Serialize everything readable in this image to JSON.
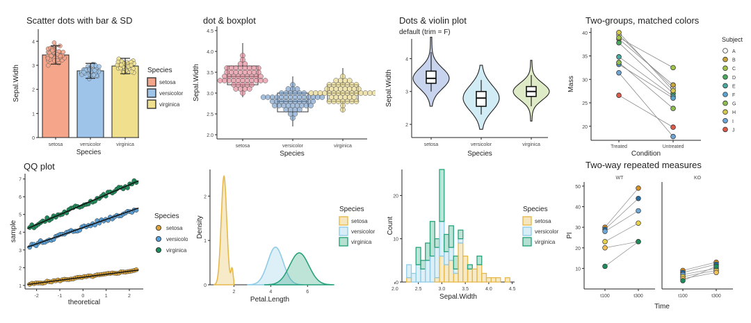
{
  "panels": [
    {
      "title": "Scatter dots with bar & SD",
      "chart_data": {
        "type": "bar",
        "categories": [
          "setosa",
          "versicolor",
          "virginica"
        ],
        "values": [
          3.43,
          2.77,
          2.97
        ],
        "sd": [
          0.38,
          0.31,
          0.32
        ],
        "xlabel": "Species",
        "ylabel": "Sepal.Width",
        "ylim": [
          0,
          4.5
        ],
        "yticks": [
          0,
          1,
          2,
          3,
          4
        ],
        "legend_title": "Species",
        "legend_labels": [
          "setosa",
          "versicolor",
          "virginica"
        ],
        "colors": [
          "#f4a58a",
          "#9ec4ea",
          "#f0e08e"
        ],
        "grid": false,
        "legend_position": "right"
      }
    },
    {
      "title": "dot & boxplot",
      "chart_data": {
        "type": "box",
        "categories": [
          "setosa",
          "versicolor",
          "virginica"
        ],
        "box": [
          {
            "min": 2.9,
            "q1": 3.2,
            "median": 3.4,
            "q3": 3.65,
            "max": 4.2
          },
          {
            "min": 2.2,
            "q1": 2.55,
            "median": 2.8,
            "q3": 3.0,
            "max": 3.4
          },
          {
            "min": 2.55,
            "q1": 2.8,
            "median": 3.0,
            "q3": 3.2,
            "max": 3.6
          }
        ],
        "xlabel": "Species",
        "ylabel": "Sepal.Width",
        "ylim": [
          1.9,
          4.6
        ],
        "yticks": [
          2.0,
          2.5,
          3.0,
          3.5,
          4.0,
          4.5
        ],
        "ytick_labels": [
          "2.0",
          "2.5",
          "3.0",
          "3.5",
          "4.0",
          "4.5"
        ],
        "colors": [
          "#e07a8a",
          "#6b94c4",
          "#e4d27a"
        ],
        "grid": false
      }
    },
    {
      "title": "Dots & violin plot",
      "subtitle": "default (trim = F)",
      "chart_data": {
        "type": "violin",
        "categories": [
          "setosa",
          "versicolor",
          "virginica"
        ],
        "box": [
          {
            "min": 3.0,
            "q1": 3.25,
            "median": 3.4,
            "q3": 3.62,
            "max": 4.2
          },
          {
            "min": 2.3,
            "q1": 2.55,
            "median": 2.8,
            "q3": 3.0,
            "max": 3.35
          },
          {
            "min": 2.55,
            "q1": 2.85,
            "median": 3.0,
            "q3": 3.15,
            "max": 3.5
          }
        ],
        "xlabel": "Species",
        "ylabel": "Sepal.Width",
        "ylim": [
          1.6,
          4.6
        ],
        "yticks": [
          2,
          3,
          4
        ],
        "colors": [
          "#c8d4ee",
          "#d2ecf6",
          "#dfeac6"
        ],
        "grid": false
      }
    },
    {
      "title": "Two-groups, matched colors",
      "chart_data": {
        "type": "line",
        "categories": [
          "Treated",
          "Untreated"
        ],
        "series": [
          {
            "name": "A",
            "values": [
              39.5,
              28.2
            ]
          },
          {
            "name": "B",
            "values": [
              38.6,
              28.8
            ]
          },
          {
            "name": "C",
            "values": [
              38.9,
              32.5
            ]
          },
          {
            "name": "D",
            "values": [
              37.8,
              27.0
            ]
          },
          {
            "name": "E",
            "values": [
              34.8,
              26.4
            ]
          },
          {
            "name": "F",
            "values": [
              33.2,
              26.0
            ]
          },
          {
            "name": "G",
            "values": [
              33.6,
              23.8
            ]
          },
          {
            "name": "H",
            "values": [
              40.0,
              27.6
            ]
          },
          {
            "name": "I",
            "values": [
              31.4,
              17.8
            ]
          },
          {
            "name": "J",
            "values": [
              26.6,
              19.8
            ]
          }
        ],
        "xlabel": "Condition",
        "ylabel": "Mass",
        "ylim": [
          17,
          41
        ],
        "yticks": [
          20,
          25,
          30,
          35,
          40
        ],
        "legend_title": "Subject",
        "colors": [
          "#ffffff",
          "#c7a43c",
          "#9fc447",
          "#4aa95c",
          "#4aa9a0",
          "#5ba3cf",
          "#8fbd52",
          "#d6c84e",
          "#6fa6d8",
          "#dd5a4a"
        ],
        "grid": false,
        "legend_position": "right"
      }
    },
    {
      "title": "QQ plot",
      "chart_data": {
        "type": "scatter",
        "series": [
          {
            "name": "setosa",
            "intercept": 1.46,
            "slope": 0.17,
            "xrange": [
              -2.3,
              2.3
            ]
          },
          {
            "name": "versicolor",
            "intercept": 4.26,
            "slope": 0.46,
            "xrange": [
              -2.3,
              2.3
            ]
          },
          {
            "name": "virginica",
            "intercept": 5.55,
            "slope": 0.56,
            "xrange": [
              -2.3,
              2.3
            ]
          }
        ],
        "xlabel": "theoretical",
        "ylabel": "sample",
        "xlim": [
          -2.5,
          2.6
        ],
        "ylim": [
          0.8,
          7.3
        ],
        "xticks": [
          -2,
          -1,
          0,
          1,
          2
        ],
        "yticks": [
          1,
          2,
          3,
          4,
          5,
          6,
          7
        ],
        "legend_title": "Species",
        "legend_labels": [
          "setosa",
          "versicolor",
          "virginica"
        ],
        "colors": [
          "#d9a33a",
          "#5aa0d6",
          "#1f8a5a"
        ],
        "grid": false,
        "legend_position": "right"
      }
    },
    {
      "title": "",
      "chart_data": {
        "type": "area",
        "series": [
          {
            "name": "setosa",
            "mean": 1.46,
            "sd": 0.15,
            "peak": 2.45
          },
          {
            "name": "versicolor",
            "mean": 4.26,
            "sd": 0.42,
            "peak": 0.85
          },
          {
            "name": "virginica",
            "mean": 5.55,
            "sd": 0.52,
            "peak": 0.72
          }
        ],
        "xlabel": "Petal.Length",
        "ylabel": "Density",
        "xlim": [
          0.7,
          7.2
        ],
        "ylim": [
          0,
          2.6
        ],
        "xticks": [
          2,
          4,
          6
        ],
        "yticks": [
          0,
          1,
          2
        ],
        "legend_title": "Species",
        "legend_labels": [
          "setosa",
          "versicolor",
          "virginica"
        ],
        "colors": [
          "#e6b84a",
          "#8fcbe6",
          "#27a27a"
        ],
        "grid": false,
        "legend_position": "right"
      }
    },
    {
      "title": "",
      "chart_data": {
        "type": "bar",
        "x": [
          2.3,
          2.4,
          2.5,
          2.6,
          2.7,
          2.8,
          2.9,
          3.0,
          3.1,
          3.2,
          3.3,
          3.4,
          3.5,
          3.6,
          3.7,
          3.8,
          3.9,
          4.0,
          4.1,
          4.2,
          4.3,
          4.4
        ],
        "series": [
          {
            "name": "setosa",
            "values": [
              1,
              0,
              0,
              0,
              0,
              0,
              1,
              6,
              4,
              5,
              2,
              9,
              6,
              3,
              3,
              4,
              2,
              1,
              1,
              1,
              0,
              1
            ]
          },
          {
            "name": "versicolor",
            "values": [
              3,
              2,
              4,
              3,
              5,
              6,
              7,
              8,
              3,
              3,
              1,
              1,
              0,
              0,
              0,
              0,
              0,
              0,
              0,
              0,
              0,
              0
            ]
          },
          {
            "name": "virginica",
            "values": [
              0,
              0,
              4,
              2,
              4,
              8,
              2,
              12,
              4,
              5,
              3,
              2,
              0,
              1,
              0,
              2,
              0,
              0,
              0,
              0,
              0,
              0
            ]
          }
        ],
        "xlabel": "Sepal.Width",
        "ylabel": "Count",
        "xlim": [
          2.15,
          4.55
        ],
        "ylim": [
          0,
          26
        ],
        "xticks": [
          2.0,
          2.5,
          3.0,
          3.5,
          4.0,
          4.5
        ],
        "yticks": [
          0,
          10,
          20
        ],
        "xtick_labels": [
          "2.0",
          "2.5",
          "3.0",
          "3.5",
          "4.0",
          "4.5"
        ],
        "legend_title": "Species",
        "legend_labels": [
          "setosa",
          "versicolor",
          "virginica"
        ],
        "colors": [
          "#e6b84a",
          "#8fcbe6",
          "#27a27a"
        ],
        "grid": false,
        "legend_position": "right"
      }
    },
    {
      "title": "Two-way repeated measures",
      "chart_data": {
        "type": "line",
        "facets": [
          "WT",
          "KO"
        ],
        "categories": [
          "t100",
          "t300"
        ],
        "series": [
          {
            "facet": "WT",
            "values": [
              30,
              49
            ]
          },
          {
            "facet": "WT",
            "values": [
              29,
              44
            ]
          },
          {
            "facet": "WT",
            "values": [
              28,
              38
            ]
          },
          {
            "facet": "WT",
            "values": [
              23,
              32
            ]
          },
          {
            "facet": "WT",
            "values": [
              20,
              23
            ]
          },
          {
            "facet": "WT",
            "values": [
              11,
              23
            ]
          },
          {
            "facet": "KO",
            "values": [
              9,
              13
            ]
          },
          {
            "facet": "KO",
            "values": [
              8,
              12
            ]
          },
          {
            "facet": "KO",
            "values": [
              7,
              10
            ]
          },
          {
            "facet": "KO",
            "values": [
              6,
              9
            ]
          },
          {
            "facet": "KO",
            "values": [
              5,
              8
            ]
          },
          {
            "facet": "KO",
            "values": [
              4,
              11
            ]
          }
        ],
        "xlabel": "Time",
        "ylabel": "PI",
        "ylim": [
          0,
          52
        ],
        "yticks": [
          10,
          20,
          30,
          40,
          50
        ],
        "colors": [
          "#d6922a",
          "#2a6da0",
          "#6fa6d8",
          "#e8d24a",
          "#f0c05a",
          "#1f8a5a"
        ],
        "grid": false
      }
    }
  ]
}
